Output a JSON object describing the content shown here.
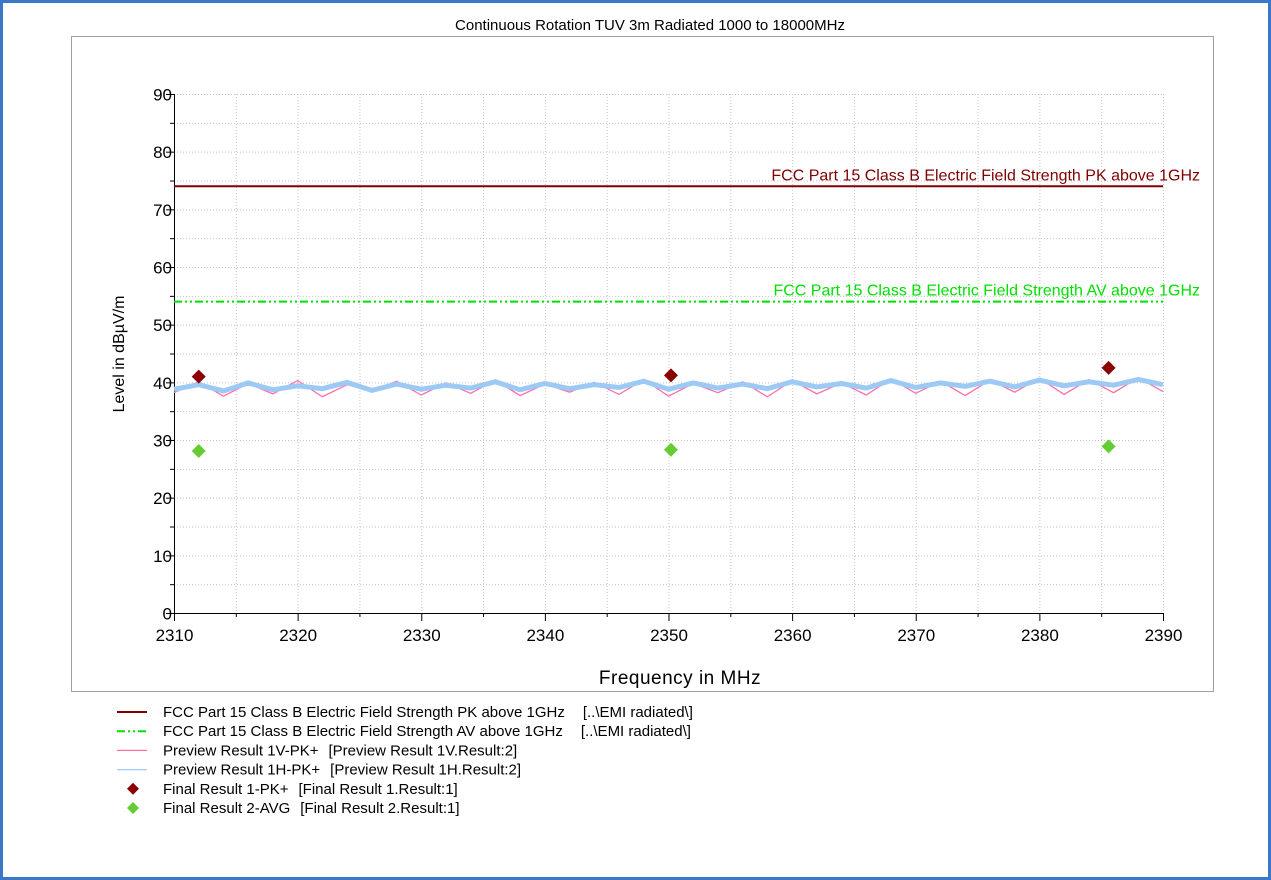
{
  "chart_data": {
    "type": "line",
    "title": "Continuous Rotation TUV 3m Radiated 1000 to 18000MHz",
    "xlabel": "Frequency in MHz",
    "ylabel": "Level in dBµV/m",
    "xlim": [
      2310,
      2390
    ],
    "xticks": [
      2310,
      2320,
      2330,
      2340,
      2350,
      2360,
      2370,
      2380,
      2390
    ],
    "xminorticks": [
      2315,
      2325,
      2335,
      2345,
      2355,
      2365,
      2375,
      2385
    ],
    "ylim": [
      0,
      90
    ],
    "yticks": [
      0,
      10,
      20,
      30,
      40,
      50,
      60,
      70,
      80,
      90
    ],
    "yminorticks": [
      5,
      15,
      25,
      35,
      45,
      55,
      65,
      75,
      85
    ],
    "grid": true,
    "series": [
      {
        "name": "FCC Part 15 Class B Electric Field Strength PK above 1GHz",
        "source": "[..\\EMI radiated\\]",
        "type": "line",
        "style": "solid",
        "color": "#800000",
        "x": [
          2310,
          2390
        ],
        "values": [
          74,
          74
        ]
      },
      {
        "name": "FCC Part 15 Class B Electric Field Strength AV above 1GHz",
        "source": "[..\\EMI radiated\\]",
        "type": "line",
        "style": "dash-dot-dot",
        "color": "#00e000",
        "x": [
          2310,
          2390
        ],
        "values": [
          54,
          54
        ]
      },
      {
        "name": "Preview Result 1V-PK+",
        "source": "[Preview Result 1V.Result:2]",
        "type": "line",
        "style": "solid",
        "color": "#ff6fa8",
        "x": [
          2310,
          2312,
          2314,
          2316,
          2318,
          2320,
          2322,
          2324,
          2326,
          2328,
          2330,
          2332,
          2334,
          2336,
          2338,
          2340,
          2342,
          2344,
          2346,
          2348,
          2350,
          2352,
          2354,
          2356,
          2358,
          2360,
          2362,
          2364,
          2366,
          2368,
          2370,
          2372,
          2374,
          2376,
          2378,
          2380,
          2382,
          2384,
          2386,
          2388,
          2390
        ],
        "values": [
          38.2,
          40.1,
          37.6,
          39.8,
          38.0,
          40.3,
          37.5,
          39.6,
          38.4,
          40.2,
          37.8,
          39.9,
          38.1,
          40.4,
          37.7,
          39.7,
          38.3,
          40.0,
          37.9,
          40.5,
          37.6,
          39.8,
          38.2,
          40.1,
          37.5,
          40.3,
          38.0,
          39.9,
          37.8,
          40.6,
          38.1,
          40.2,
          37.7,
          40.4,
          38.3,
          40.7,
          37.9,
          40.5,
          38.2,
          40.8,
          38.4
        ]
      },
      {
        "name": "Preview Result 1H-PK+",
        "source": "[Preview Result 1H.Result:2]",
        "type": "line",
        "style": "solid",
        "color": "#9ccaf4",
        "x": [
          2310,
          2312,
          2314,
          2316,
          2318,
          2320,
          2322,
          2324,
          2326,
          2328,
          2330,
          2332,
          2334,
          2336,
          2338,
          2340,
          2342,
          2344,
          2346,
          2348,
          2350,
          2352,
          2354,
          2356,
          2358,
          2360,
          2362,
          2364,
          2366,
          2368,
          2370,
          2372,
          2374,
          2376,
          2378,
          2380,
          2382,
          2384,
          2386,
          2388,
          2390
        ],
        "values": [
          38.8,
          39.6,
          38.5,
          39.9,
          38.7,
          39.4,
          38.9,
          40.0,
          38.6,
          39.7,
          38.8,
          39.5,
          39.0,
          40.1,
          38.7,
          39.8,
          38.9,
          39.6,
          39.1,
          40.2,
          38.8,
          39.9,
          39.0,
          39.7,
          38.9,
          40.1,
          39.2,
          39.8,
          39.0,
          40.3,
          39.1,
          39.9,
          39.3,
          40.2,
          39.2,
          40.4,
          39.4,
          40.1,
          39.5,
          40.5,
          39.6
        ]
      },
      {
        "name": "Final Result 1-PK+",
        "source": "[Final Result 1.Result:1]",
        "type": "scatter",
        "marker": "diamond",
        "color": "#8b0000",
        "x": [
          2312.0,
          2350.2,
          2385.6
        ],
        "values": [
          41.0,
          41.2,
          42.5
        ]
      },
      {
        "name": "Final Result 2-AVG",
        "source": "[Final Result 2.Result:1]",
        "type": "scatter",
        "marker": "diamond",
        "color": "#66cc33",
        "x": [
          2312.0,
          2350.2,
          2385.6
        ],
        "values": [
          28.1,
          28.3,
          28.9
        ]
      }
    ]
  }
}
